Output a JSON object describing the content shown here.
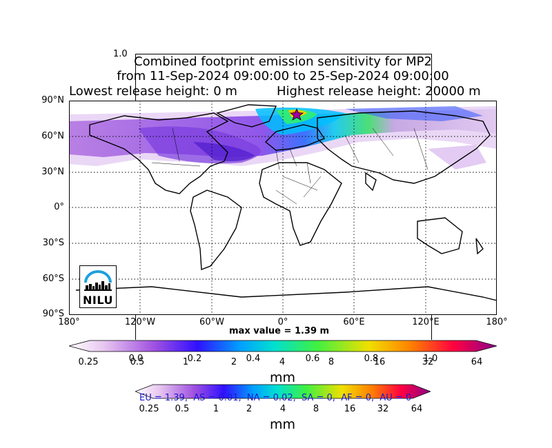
{
  "ghost_axis_top_label": "1.0",
  "title": {
    "line1": "Combined footprint emission sensitivity for MP2",
    "line2": "from 11-Sep-2024 09:00:00 to 25-Sep-2024 09:00:00",
    "line3_left": "Lowest release height: 0 m",
    "line3_right": "Highest release height: 20000 m"
  },
  "map": {
    "lat_labels": [
      "90°N",
      "60°N",
      "30°N",
      "0°",
      "30°S",
      "60°S",
      "90°S"
    ],
    "lon_labels": [
      "180°",
      "120°W",
      "60°W",
      "0°",
      "60°E",
      "120°E",
      "180°"
    ],
    "max_value_text": "max value = 1.39 m",
    "logo_text": "NILU",
    "release_marker": "star",
    "colors": {
      "land_outline": "#000000",
      "ocean": "#ffffff"
    }
  },
  "colorbar_main": {
    "ticks": [
      "0.25",
      "0.5",
      "1",
      "2",
      "4",
      "8",
      "16",
      "32",
      "64"
    ],
    "unit": "mm",
    "colors": [
      "#f4e8f6",
      "#c890dc",
      "#9048e0",
      "#2020ff",
      "#00d0f0",
      "#40f040",
      "#f0d000",
      "#ff4000",
      "#c80060",
      "#8b008b"
    ]
  },
  "ghost_axis_ticks": [
    "0.0",
    "0.2",
    "0.4",
    "0.6",
    "0.8",
    "1.0"
  ],
  "colorbar_second": {
    "ticks": [
      "0.25",
      "0.5",
      "1",
      "2",
      "4",
      "8",
      "16",
      "32",
      "64"
    ],
    "unit": "mm"
  },
  "region_summary": "EU = 1.39,  AS = 0.01,  NA = 0.02,  SA = 0,  AF = 0,  AU = 0"
}
